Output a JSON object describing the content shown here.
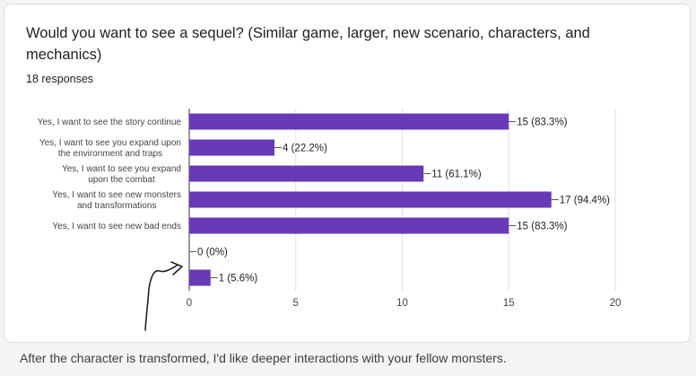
{
  "question": {
    "title": "Would you want to see a sequel? (Similar game, larger, new scenario, characters, and mechanics)",
    "responses": "18 responses"
  },
  "chart_data": {
    "type": "bar",
    "orientation": "horizontal",
    "categories": [
      [
        "Yes, I want to see the story continue"
      ],
      [
        "Yes, I want to see you expand upon",
        "the environment and traps"
      ],
      [
        "Yes, I want to see you expand",
        "upon the combat"
      ],
      [
        "Yes, I want to see new monsters",
        "and transformations"
      ],
      [
        "Yes, I want to see new bad ends"
      ],
      [],
      []
    ],
    "values": [
      15,
      4,
      11,
      17,
      15,
      0,
      1
    ],
    "value_labels": [
      "15 (83.3%)",
      "4 (22.2%)",
      "11 (61.1%)",
      "17 (94.4%)",
      "15 (83.3%)",
      "0 (0%)",
      "1 (5.6%)"
    ],
    "xlim": [
      0,
      20
    ],
    "x_ticks": [
      "0",
      "5",
      "10",
      "15",
      "20"
    ],
    "grid": true,
    "bar_color": "#673ab7"
  },
  "caption": "After the character is transformed, I'd like deeper interactions with your fellow monsters."
}
